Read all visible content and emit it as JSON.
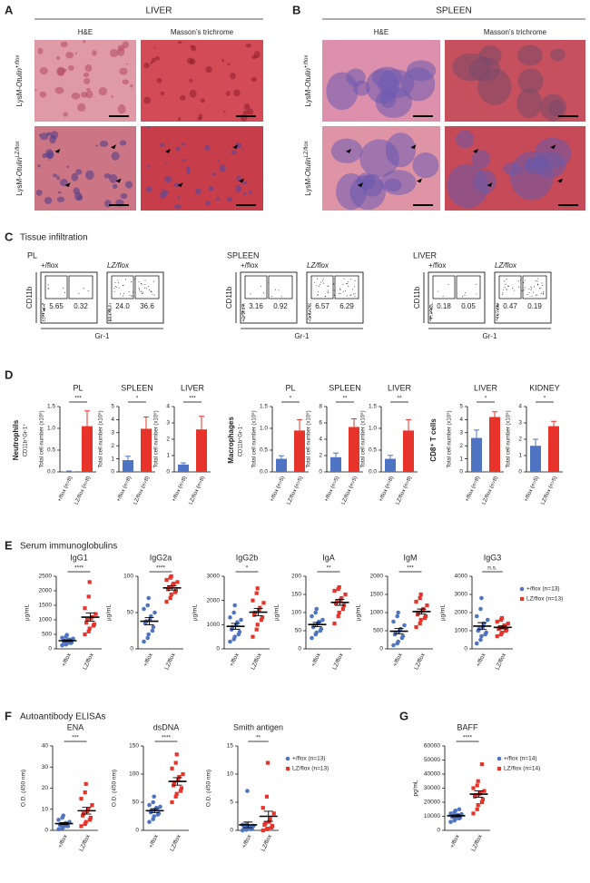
{
  "figure": {
    "panel_letters": [
      "A",
      "B",
      "C",
      "D",
      "E",
      "F",
      "G"
    ],
    "A": {
      "title": "LIVER",
      "columns": [
        "H&E",
        "Masson’s trichrome"
      ]
    },
    "B": {
      "title": "SPLEEN",
      "columns": [
        "H&E",
        "Masson’s trichrome"
      ]
    },
    "genotype_rows": [
      {
        "prefix": "LysM-",
        "gene": "Otulin",
        "sup": "+/flox"
      },
      {
        "prefix": "LysM-",
        "gene": "Otulin",
        "sup": "LZ/flox"
      }
    ],
    "C": {
      "title": "Tissue infiltration",
      "y_axis": "CD11b",
      "x_axis": "Gr-1",
      "tissues": [
        {
          "name": "PL",
          "plots": [
            {
              "label": "+/flox",
              "gates": [
                "5.65",
                "0.32"
              ]
            },
            {
              "label": "LZ/flox",
              "gates": [
                "24.0",
                "36.6"
              ]
            }
          ]
        },
        {
          "name": "SPLEEN",
          "plots": [
            {
              "label": "+/flox",
              "gates": [
                "3.16",
                "0.92"
              ]
            },
            {
              "label": "LZ/flox",
              "gates": [
                "6.57",
                "6.29"
              ]
            }
          ]
        },
        {
          "name": "LIVER",
          "plots": [
            {
              "label": "+/flox",
              "gates": [
                "0.18",
                "0.05"
              ]
            },
            {
              "label": "LZ/flox",
              "gates": [
                "0.47",
                "0.19"
              ]
            }
          ]
        }
      ]
    },
    "D": {
      "rows": [
        {
          "name": "Neutrophils",
          "marker": "CD11b⁺Gr-1⁺"
        },
        {
          "name": "Macrophages",
          "marker": "CD11b⁺Gr-1⁻"
        },
        {
          "name": "CD8⁺ T cells"
        }
      ]
    },
    "E": {
      "title": "Serum immunoglobulins"
    },
    "F": {
      "title": "Autoantibody ELISAs"
    }
  },
  "chart_data": [
    {
      "type": "bar",
      "title": "PL",
      "y_label": "Total cell number (x10⁶)",
      "categories": [
        "+/flox (n=8)",
        "LZ/flox (n=8)"
      ],
      "colors": [
        "#4f74c4",
        "#e8332a"
      ],
      "values": [
        0.01,
        1.05
      ],
      "errors": [
        0.01,
        0.35
      ],
      "ylim": [
        0,
        1.5
      ],
      "yticks": [
        {
          "value": 0,
          "label": "0.0"
        },
        0.5,
        {
          "value": 1,
          "label": "1.0"
        },
        1.5
      ],
      "significance": "***"
    },
    {
      "type": "bar",
      "title": "SPLEEN",
      "y_label": "Total cell number (x10⁶)",
      "categories": [
        "+/flox (n=8)",
        "LZ/flox (n=8)"
      ],
      "colors": [
        "#4f74c4",
        "#e8332a"
      ],
      "values": [
        0.9,
        3.3
      ],
      "errors": [
        0.3,
        0.9
      ],
      "ylim": [
        0,
        5
      ],
      "yticks": [
        0,
        1,
        2,
        3,
        4,
        5
      ],
      "significance": "*"
    },
    {
      "type": "bar",
      "title": "LIVER",
      "y_label": "Total cell number (x10⁶)",
      "categories": [
        "+/flox (n=8)",
        "LZ/flox (n=8)"
      ],
      "colors": [
        "#4f74c4",
        "#e8332a"
      ],
      "values": [
        0.45,
        2.6
      ],
      "errors": [
        0.1,
        0.8
      ],
      "ylim": [
        0,
        4
      ],
      "yticks": [
        0,
        1,
        2,
        3,
        4
      ],
      "significance": "***"
    },
    {
      "type": "bar",
      "title": "PL",
      "y_label": "Total cell number (x10⁶)",
      "categories": [
        "+/flox (n=5)",
        "LZ/flox (n=5)"
      ],
      "colors": [
        "#4f74c4",
        "#e8332a"
      ],
      "values": [
        0.3,
        0.95
      ],
      "errors": [
        0.07,
        0.25
      ],
      "ylim": [
        0,
        1.5
      ],
      "yticks": [
        {
          "value": 0,
          "label": "0.0"
        },
        0.5,
        {
          "value": 1,
          "label": "1.0"
        },
        1.5
      ],
      "significance": "*"
    },
    {
      "type": "bar",
      "title": "SPLEEN",
      "y_label": "Total cell number (x10⁶)",
      "categories": [
        "+/flox (n=5)",
        "LZ/flox (n=5)"
      ],
      "colors": [
        "#4f74c4",
        "#e8332a"
      ],
      "values": [
        1.8,
        5.5
      ],
      "errors": [
        0.5,
        1.0
      ],
      "ylim": [
        0,
        8
      ],
      "yticks": [
        0,
        2,
        4,
        6,
        8
      ],
      "significance": "**"
    },
    {
      "type": "bar",
      "title": "LIVER",
      "y_label": "Total cell number (x10⁶)",
      "categories": [
        "+/flox (n=8)",
        "LZ/flox (n=8)"
      ],
      "colors": [
        "#4f74c4",
        "#e8332a"
      ],
      "values": [
        0.3,
        0.95
      ],
      "errors": [
        0.08,
        0.25
      ],
      "ylim": [
        0,
        1.5
      ],
      "yticks": [
        {
          "value": 0,
          "label": "0.0"
        },
        0.5,
        {
          "value": 1,
          "label": "1.0"
        },
        1.5
      ],
      "significance": "**"
    },
    {
      "type": "bar",
      "title": "LIVER",
      "y_label": "Total cell number (x10⁵)",
      "categories": [
        "+/flox (n=8)",
        "LZ/flox (n=8)"
      ],
      "colors": [
        "#4f74c4",
        "#e8332a"
      ],
      "values": [
        2.6,
        4.2
      ],
      "errors": [
        0.6,
        0.4
      ],
      "ylim": [
        0,
        5
      ],
      "yticks": [
        0,
        1,
        2,
        3,
        4,
        5
      ],
      "significance": "*"
    },
    {
      "type": "bar",
      "title": "KIDNEY",
      "y_label": "Total cell number (x10⁵)",
      "categories": [
        "+/flox (n=5)",
        "LZ/flox (n=5)"
      ],
      "colors": [
        "#4f74c4",
        "#e8332a"
      ],
      "values": [
        1.6,
        2.8
      ],
      "errors": [
        0.4,
        0.3
      ],
      "ylim": [
        0,
        4
      ],
      "yticks": [
        0,
        1,
        2,
        3,
        4
      ],
      "significance": "*"
    },
    {
      "type": "strip",
      "title": "IgG1",
      "y_label": "µg/mL",
      "categories": [
        "+/flox",
        "LZ/flox"
      ],
      "series": [
        {
          "color": "#4f74c4",
          "values": [
            120,
            150,
            180,
            200,
            220,
            250,
            280,
            300,
            320,
            350,
            380,
            420,
            480
          ]
        },
        {
          "color": "#e8332a",
          "values": [
            500,
            600,
            700,
            800,
            850,
            900,
            1000,
            1050,
            1100,
            1200,
            1400,
            1800,
            2300
          ]
        }
      ],
      "means": [
        281,
        1092
      ],
      "sems": [
        30,
        140
      ],
      "ylim": [
        0,
        2500
      ],
      "yticks": [
        0,
        500,
        1000,
        1500,
        2000,
        2500
      ],
      "significance": "****"
    },
    {
      "type": "strip",
      "title": "IgG2a",
      "y_label": "µg/mL",
      "categories": [
        "+/flox",
        "LZ/flox"
      ],
      "series": [
        {
          "color": "#4f74c4",
          "values": [
            10,
            15,
            20,
            25,
            30,
            35,
            38,
            40,
            45,
            50,
            55,
            60,
            70
          ]
        },
        {
          "color": "#e8332a",
          "values": [
            65,
            70,
            75,
            78,
            80,
            82,
            85,
            88,
            90,
            92,
            95,
            98,
            100
          ]
        }
      ],
      "means": [
        38,
        84
      ],
      "sems": [
        5,
        3
      ],
      "ylim": [
        0,
        100
      ],
      "yticks": [
        0,
        50,
        100
      ],
      "significance": "****"
    },
    {
      "type": "strip",
      "title": "IgG2b",
      "y_label": "µg/mL",
      "categories": [
        "+/flox",
        "LZ/flox"
      ],
      "series": [
        {
          "color": "#4f74c4",
          "values": [
            300,
            400,
            500,
            600,
            700,
            800,
            900,
            1000,
            1100,
            1200,
            1300,
            1500,
            1800
          ]
        },
        {
          "color": "#e8332a",
          "values": [
            500,
            800,
            1000,
            1200,
            1300,
            1400,
            1500,
            1600,
            1700,
            1900,
            2000,
            2300,
            2500
          ]
        }
      ],
      "means": [
        931,
        1515
      ],
      "sems": [
        120,
        150
      ],
      "ylim": [
        0,
        3000
      ],
      "yticks": [
        0,
        1000,
        2000,
        3000
      ],
      "significance": "*"
    },
    {
      "type": "strip",
      "title": "IgA",
      "y_label": "µg/mL",
      "categories": [
        "+/flox",
        "LZ/flox"
      ],
      "series": [
        {
          "color": "#4f74c4",
          "values": [
            30,
            40,
            45,
            50,
            55,
            60,
            65,
            70,
            75,
            80,
            90,
            100,
            110
          ]
        },
        {
          "color": "#e8332a",
          "values": [
            70,
            90,
            100,
            110,
            120,
            125,
            130,
            135,
            140,
            150,
            160,
            165,
            170
          ]
        }
      ],
      "means": [
        67,
        128
      ],
      "sems": [
        6,
        8
      ],
      "ylim": [
        0,
        200
      ],
      "yticks": [
        0,
        50,
        100,
        150,
        200
      ],
      "significance": "**"
    },
    {
      "type": "strip",
      "title": "IgM",
      "y_label": "µg/mL",
      "categories": [
        "+/flox",
        "LZ/flox"
      ],
      "series": [
        {
          "color": "#4f74c4",
          "values": [
            100,
            150,
            200,
            300,
            350,
            400,
            450,
            500,
            550,
            650,
            750,
            900,
            1000
          ]
        },
        {
          "color": "#e8332a",
          "values": [
            600,
            700,
            800,
            850,
            900,
            950,
            1000,
            1050,
            1100,
            1200,
            1300,
            1400,
            1500
          ]
        }
      ],
      "means": [
        485,
        1027
      ],
      "sems": [
        75,
        70
      ],
      "ylim": [
        0,
        2000
      ],
      "yticks": [
        0,
        500,
        1000,
        1500,
        2000
      ],
      "significance": "***"
    },
    {
      "type": "strip",
      "title": "IgG3",
      "y_label": "µg/mL",
      "categories": [
        "+/flox",
        "LZ/flox"
      ],
      "series": [
        {
          "name": "+/flox (n=13)",
          "color": "#4f74c4",
          "values": [
            300,
            500,
            700,
            800,
            900,
            1000,
            1100,
            1200,
            1400,
            1600,
            1800,
            2200,
            2800
          ]
        },
        {
          "name": "LZ/flox (n=13)",
          "color": "#e8332a",
          "values": [
            700,
            800,
            900,
            1000,
            1050,
            1100,
            1150,
            1200,
            1300,
            1400,
            1500,
            1600,
            1700
          ]
        }
      ],
      "means": [
        1254,
        1185
      ],
      "sems": [
        190,
        80
      ],
      "ylim": [
        0,
        4000
      ],
      "yticks": [
        0,
        1000,
        2000,
        3000,
        4000
      ],
      "significance": "n.s.",
      "legend": "right"
    },
    {
      "type": "strip",
      "title": "ENA",
      "y_label": "O.D. (450 nm)",
      "categories": [
        "+/flox",
        "LZ/flox"
      ],
      "series": [
        {
          "color": "#4f74c4",
          "values": [
            0.5,
            1,
            1.5,
            2,
            2,
            2.5,
            3,
            3,
            3.5,
            4,
            5,
            6,
            7
          ]
        },
        {
          "color": "#e8332a",
          "values": [
            2,
            3,
            4,
            5,
            6,
            7,
            8,
            9,
            10,
            12,
            15,
            18,
            22
          ]
        }
      ],
      "means": [
        3.2,
        9.3
      ],
      "sems": [
        0.5,
        1.6
      ],
      "ylim": [
        0,
        40
      ],
      "yticks": [
        0,
        10,
        20,
        30,
        40
      ],
      "significance": "***"
    },
    {
      "type": "strip",
      "title": "dsDNA",
      "y_label": "O.D. (450 nm)",
      "categories": [
        "+/flox",
        "LZ/flox"
      ],
      "series": [
        {
          "color": "#4f74c4",
          "values": [
            15,
            20,
            25,
            28,
            30,
            32,
            35,
            38,
            40,
            42,
            45,
            50,
            60
          ]
        },
        {
          "color": "#e8332a",
          "values": [
            50,
            60,
            65,
            70,
            75,
            80,
            85,
            90,
            95,
            100,
            110,
            120,
            135
          ]
        }
      ],
      "means": [
        35,
        87
      ],
      "sems": [
        3.4,
        6.7
      ],
      "ylim": [
        0,
        150
      ],
      "yticks": [
        0,
        50,
        100,
        150
      ],
      "significance": "****"
    },
    {
      "type": "strip",
      "title": "Smith antigen",
      "y_label": "O.D. (450 nm)",
      "categories": [
        "+/flox",
        "LZ/flox"
      ],
      "series": [
        {
          "name": "+/flox (n=13)",
          "color": "#4f74c4",
          "values": [
            0,
            0.1,
            0.2,
            0.2,
            0.3,
            0.4,
            0.5,
            0.5,
            0.6,
            0.8,
            1,
            1,
            7
          ]
        },
        {
          "name": "LZ/flox (n=13)",
          "color": "#e8332a",
          "values": [
            0,
            0.2,
            0.3,
            0.5,
            0.8,
            1,
            1.2,
            1.5,
            2,
            3,
            4,
            6,
            12
          ]
        }
      ],
      "means": [
        0.97,
        2.5
      ],
      "sems": [
        0.5,
        0.9
      ],
      "ylim": [
        0,
        15
      ],
      "yticks": [
        0,
        5,
        10,
        15
      ],
      "significance": "**",
      "legend": "right"
    },
    {
      "type": "strip",
      "title": "BAFF",
      "y_label": "pg/mL",
      "categories": [
        "+/flox",
        "LZ/flox"
      ],
      "series": [
        {
          "name": "+/flox (n=14)",
          "color": "#4f74c4",
          "values": [
            6000,
            7000,
            8000,
            8500,
            9000,
            9500,
            10000,
            10500,
            11000,
            11500,
            12000,
            13000,
            14000,
            15000
          ]
        },
        {
          "name": "LZ/flox (n=14)",
          "color": "#e8332a",
          "values": [
            12000,
            15000,
            18000,
            20000,
            22000,
            24000,
            25000,
            26000,
            27000,
            28000,
            30000,
            32000,
            35000,
            47000
          ]
        }
      ],
      "means": [
        10357,
        25786
      ],
      "sems": [
        700,
        2300
      ],
      "ylim": [
        0,
        60000
      ],
      "yticks": [
        0,
        10000,
        20000,
        30000,
        40000,
        50000,
        60000
      ],
      "significance": "****",
      "legend": "right"
    }
  ]
}
